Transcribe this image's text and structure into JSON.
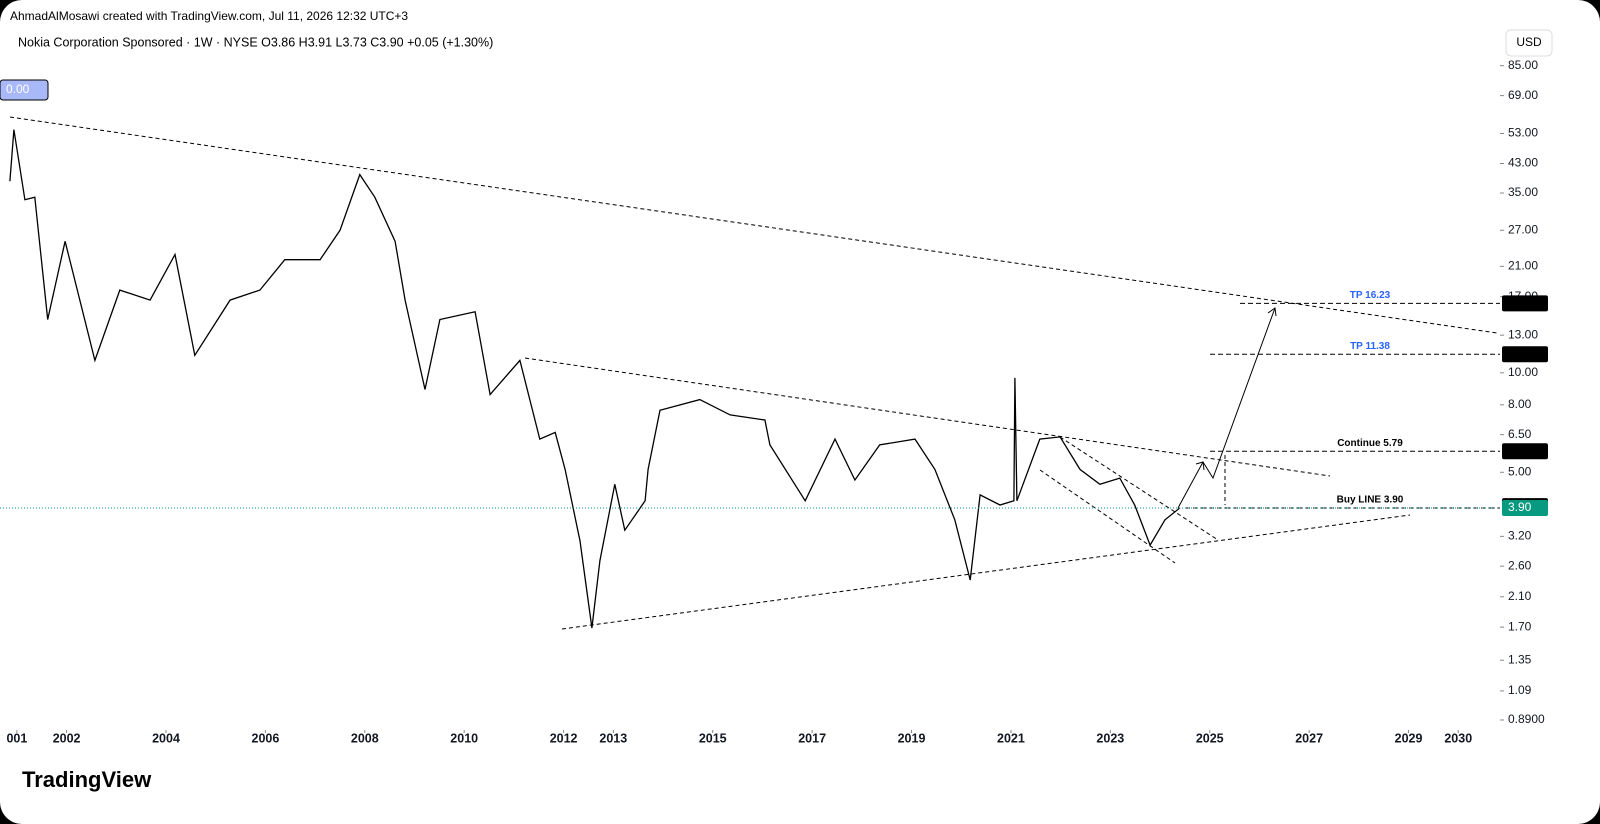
{
  "header": {
    "credit": "AhmadAlMosawi created with TradingView.com, Jul 11, 2026 12:32 UTC+3",
    "corner_tag": "0.00",
    "logo": "TradingView"
  },
  "chart_data": {
    "type": "line",
    "title": "Nokia Corporation Sponsored · 1W · NYSE  O3.86  H3.91  L3.73  C3.90  +0.05 (+1.30%)",
    "y_unit": "USD",
    "log_scale": true,
    "color": "#000000",
    "x": [
      2000.86,
      2000.94,
      2001.16,
      2001.36,
      2001.62,
      2001.97,
      2002.57,
      2003.07,
      2003.68,
      2004.18,
      2004.58,
      2005.29,
      2005.89,
      2006.39,
      2007.1,
      2007.5,
      2007.9,
      2008.2,
      2008.61,
      2008.81,
      2009.21,
      2009.51,
      2010.22,
      2010.52,
      2011.12,
      2011.32,
      2011.52,
      2011.83,
      2012.03,
      2012.33,
      2012.57,
      2012.73,
      2013.03,
      2013.23,
      2013.64,
      2013.7,
      2013.94,
      2014.74,
      2015.35,
      2016.05,
      2016.15,
      2016.86,
      2017.46,
      2017.86,
      2018.36,
      2019.07,
      2019.47,
      2019.87,
      2020.18,
      2020.38,
      2020.78,
      2021.06,
      2021.08,
      2021.12,
      2021.58,
      2021.99,
      2022.39,
      2022.79,
      2023.19,
      2023.49,
      2023.8,
      2024.1,
      2024.4
    ],
    "values": [
      38,
      54.4,
      33.4,
      34,
      14.5,
      25,
      10.9,
      17.8,
      16.6,
      22.8,
      11.3,
      16.6,
      17.8,
      22,
      22,
      27,
      39.8,
      34,
      25,
      16.6,
      8.9,
      14.5,
      15.3,
      8.6,
      10.9,
      8.3,
      6.3,
      6.6,
      5.1,
      3.1,
      1.69,
      2.7,
      4.6,
      3.34,
      4.1,
      5.1,
      7.7,
      8.3,
      7.46,
      7.2,
      6.05,
      4.1,
      6.3,
      4.74,
      6.05,
      6.3,
      5.1,
      3.59,
      2.36,
      4.27,
      3.98,
      4.1,
      9.65,
      4.1,
      6.3,
      6.4,
      5.1,
      4.6,
      4.8,
      3.98,
      3.01,
      3.59,
      3.9
    ],
    "xlim": [
      2000.66,
      2030.84
    ],
    "xticks": [
      {
        "value": 2001,
        "label": "001"
      },
      2002,
      2004,
      2006,
      2008,
      2010,
      2012,
      2013,
      2015,
      2017,
      2019,
      2021,
      2023,
      2025,
      2027,
      2029,
      2030
    ],
    "ylim": [
      0.83,
      109
    ],
    "yticks": [
      {
        "value": 85,
        "label": "85.00"
      },
      {
        "value": 69,
        "label": "69.00"
      },
      {
        "value": 53,
        "label": "53.00"
      },
      {
        "value": 43,
        "label": "43.00"
      },
      {
        "value": 35,
        "label": "35.00"
      },
      {
        "value": 27,
        "label": "27.00"
      },
      {
        "value": 21,
        "label": "21.00"
      },
      {
        "value": 17,
        "label": "17.00"
      },
      {
        "value": 13,
        "label": "13.00"
      },
      {
        "value": 10,
        "label": "10.00"
      },
      {
        "value": 8,
        "label": "8.00"
      },
      {
        "value": 6.5,
        "label": "6.50"
      },
      {
        "value": 5,
        "label": "5.00"
      },
      {
        "value": 3.2,
        "label": "3.20"
      },
      {
        "value": 2.6,
        "label": "2.60"
      },
      {
        "value": 2.1,
        "label": "2.10"
      },
      {
        "value": 1.7,
        "label": "1.70"
      },
      {
        "value": 1.35,
        "label": "1.35"
      },
      {
        "value": 1.09,
        "label": "1.09"
      },
      {
        "value": 0.89,
        "label": "0.8900"
      }
    ],
    "levels": [
      {
        "name": "TP 16.23",
        "value": 16.23,
        "color": "#2962ff"
      },
      {
        "name": "TP 11.38",
        "value": 11.38,
        "color": "#2962ff"
      },
      {
        "name": "Continue 5.79",
        "value": 5.79,
        "color": "#000000"
      },
      {
        "name": "Buy LINE 3.90",
        "value": 3.9,
        "color": "#000000"
      }
    ],
    "price_tags": [
      {
        "value": 16.23,
        "color": "#000000"
      },
      {
        "value": 11.38,
        "color": "#000000"
      },
      {
        "value": 5.79,
        "color": "#000000"
      },
      {
        "value": 3.95,
        "color": "#000000"
      },
      {
        "value": 3.9,
        "label": "3.90",
        "color": "#089981"
      }
    ]
  }
}
